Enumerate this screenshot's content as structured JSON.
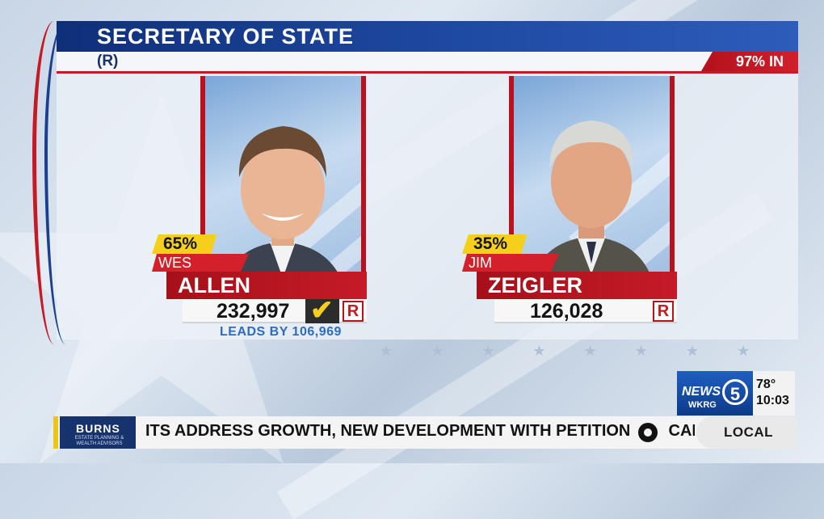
{
  "race": {
    "title": "SECRETARY OF STATE",
    "party": "(R)",
    "reporting": "97% IN"
  },
  "candidates": [
    {
      "percent": "65%",
      "first_name": "WES",
      "last_name": "ALLEN",
      "votes": "232,997",
      "party_badge": "R",
      "winner_check": "✔",
      "leads": "LEADS BY 106,969"
    },
    {
      "percent": "35%",
      "first_name": "JIM",
      "last_name": "ZEIGLER",
      "votes": "126,028",
      "party_badge": "R"
    }
  ],
  "station": {
    "brand": "NEWS",
    "channel": "5",
    "call_sign": "WKRG",
    "temperature": "78°",
    "time": "10:03"
  },
  "ticker": {
    "sponsor_name": "BURNS",
    "sponsor_tagline": "ESTATE PLANNING & WEALTH ADVISORS",
    "headline": "ITS ADDRESS GROWTH, NEW DEVELOPMENT WITH PETITION",
    "headline_tail": "CAN",
    "section": "LOCAL"
  },
  "colors": {
    "republican_red": "#c41a24",
    "title_blue": "#1f4aa3",
    "percent_yellow": "#f5cf1c",
    "leads_blue": "#2d6cc0"
  },
  "icons": [
    "checkmark-icon",
    "cbs-eye-icon"
  ]
}
